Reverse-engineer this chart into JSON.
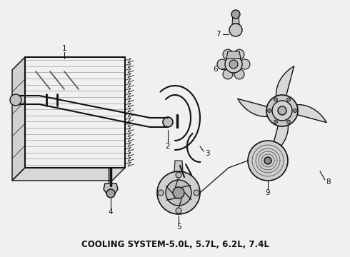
{
  "title": "COOLING SYSTEM-5.0L, 5.7L, 6.2L, 7.4L",
  "title_fontsize": 8.5,
  "title_fontweight": "bold",
  "bg_color": "#f0f0f0",
  "fg_color": "#111111",
  "fig_width": 4.9,
  "fig_height": 3.6,
  "dpi": 100
}
